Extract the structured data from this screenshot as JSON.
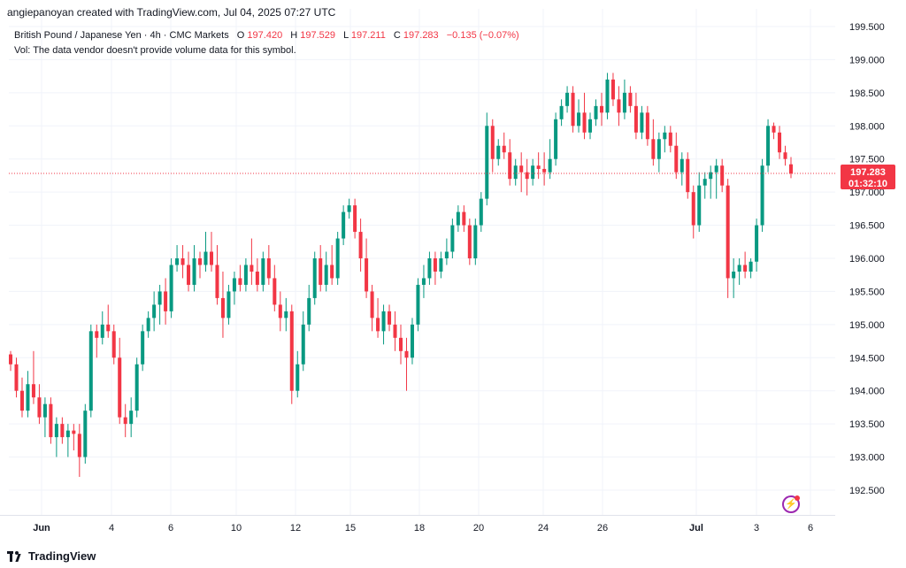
{
  "header": {
    "watermark": "angiepanoyan created with TradingView.com, Jul 04, 2025 07:27 UTC",
    "symbol_desc": "British Pound / Japanese Yen · 4h · CMC Markets",
    "ohlc": {
      "o_label": "O",
      "o_value": "197.420",
      "h_label": "H",
      "h_value": "197.529",
      "l_label": "L",
      "l_value": "197.211",
      "c_label": "C",
      "c_value": "197.283",
      "change": "−0.135 (−0.07%)"
    },
    "vol_note": "Vol: The data vendor doesn't provide volume data for this symbol."
  },
  "price_label": {
    "price": "197.283",
    "countdown": "01:32:10"
  },
  "footer": {
    "brand": "TradingView"
  },
  "colors": {
    "up": "#089981",
    "down": "#f23645",
    "grid": "#f0f3fa",
    "text": "#131722"
  },
  "icons": {
    "brand": "tradingview-logo-icon",
    "alert": "lightning-bolt-icon"
  },
  "chart_data": {
    "type": "candlestick",
    "symbol": "GBPJPY",
    "timeframe": "4h",
    "ylim": [
      192.2,
      199.6
    ],
    "y_ticks": [
      "199.500",
      "199.000",
      "198.500",
      "198.000",
      "197.500",
      "197.000",
      "196.500",
      "196.000",
      "195.500",
      "195.000",
      "194.500",
      "194.000",
      "193.500",
      "193.000",
      "192.500"
    ],
    "x_ticks": [
      {
        "label": "Jun",
        "bold": true
      },
      {
        "label": "4",
        "bold": false
      },
      {
        "label": "6",
        "bold": false
      },
      {
        "label": "10",
        "bold": false
      },
      {
        "label": "12",
        "bold": false
      },
      {
        "label": "15",
        "bold": false
      },
      {
        "label": "18",
        "bold": false
      },
      {
        "label": "20",
        "bold": false
      },
      {
        "label": "24",
        "bold": false
      },
      {
        "label": "26",
        "bold": false
      },
      {
        "label": "Jul",
        "bold": true
      },
      {
        "label": "3",
        "bold": false
      },
      {
        "label": "6",
        "bold": false
      }
    ],
    "last_price": 197.283,
    "candles": [
      [
        194.55,
        194.6,
        194.3,
        194.4
      ],
      [
        194.4,
        194.5,
        193.9,
        194.0
      ],
      [
        194.0,
        194.2,
        193.6,
        193.7
      ],
      [
        193.7,
        194.3,
        193.6,
        194.1
      ],
      [
        194.1,
        194.6,
        193.8,
        193.9
      ],
      [
        193.9,
        194.1,
        193.5,
        193.6
      ],
      [
        193.6,
        193.9,
        193.3,
        193.8
      ],
      [
        193.8,
        193.9,
        193.2,
        193.3
      ],
      [
        193.3,
        193.6,
        193.0,
        193.5
      ],
      [
        193.5,
        193.6,
        193.2,
        193.3
      ],
      [
        193.3,
        193.5,
        193.0,
        193.4
      ],
      [
        193.4,
        193.5,
        193.1,
        193.35
      ],
      [
        193.35,
        193.5,
        192.7,
        193.0
      ],
      [
        193.0,
        193.8,
        192.9,
        193.7
      ],
      [
        193.7,
        195.0,
        193.6,
        194.9
      ],
      [
        194.9,
        195.0,
        194.5,
        194.8
      ],
      [
        194.8,
        195.2,
        194.7,
        195.0
      ],
      [
        195.0,
        195.3,
        194.8,
        194.9
      ],
      [
        194.9,
        195.0,
        194.4,
        194.5
      ],
      [
        194.5,
        194.8,
        193.5,
        193.6
      ],
      [
        193.6,
        193.8,
        193.3,
        193.5
      ],
      [
        193.5,
        193.9,
        193.3,
        193.7
      ],
      [
        193.7,
        194.5,
        193.6,
        194.4
      ],
      [
        194.4,
        195.0,
        194.3,
        194.9
      ],
      [
        194.9,
        195.2,
        194.8,
        195.1
      ],
      [
        195.1,
        195.5,
        194.9,
        195.3
      ],
      [
        195.3,
        195.6,
        195.0,
        195.5
      ],
      [
        195.5,
        195.7,
        195.0,
        195.2
      ],
      [
        195.2,
        196.0,
        195.1,
        195.9
      ],
      [
        195.9,
        196.2,
        195.8,
        196.0
      ],
      [
        196.0,
        196.2,
        195.7,
        195.9
      ],
      [
        195.9,
        196.1,
        195.5,
        195.6
      ],
      [
        195.6,
        196.2,
        195.5,
        196.0
      ],
      [
        196.0,
        196.1,
        195.7,
        195.9
      ],
      [
        195.9,
        196.4,
        195.8,
        196.1
      ],
      [
        196.1,
        196.4,
        195.8,
        195.9
      ],
      [
        195.9,
        196.2,
        195.3,
        195.4
      ],
      [
        195.4,
        195.8,
        194.8,
        195.1
      ],
      [
        195.1,
        195.6,
        195.0,
        195.5
      ],
      [
        195.5,
        195.8,
        195.3,
        195.7
      ],
      [
        195.7,
        195.9,
        195.5,
        195.6
      ],
      [
        195.6,
        196.0,
        195.5,
        195.9
      ],
      [
        195.9,
        196.3,
        195.6,
        195.8
      ],
      [
        195.8,
        196.0,
        195.5,
        195.6
      ],
      [
        195.6,
        196.1,
        195.5,
        196.0
      ],
      [
        196.0,
        196.2,
        195.6,
        195.7
      ],
      [
        195.7,
        195.9,
        195.2,
        195.3
      ],
      [
        195.3,
        195.5,
        194.9,
        195.1
      ],
      [
        195.1,
        195.4,
        194.9,
        195.2
      ],
      [
        195.2,
        195.3,
        193.8,
        194.0
      ],
      [
        194.0,
        194.6,
        193.9,
        194.4
      ],
      [
        194.4,
        195.2,
        194.3,
        195.0
      ],
      [
        195.0,
        195.6,
        194.9,
        195.4
      ],
      [
        195.4,
        196.1,
        195.3,
        196.0
      ],
      [
        196.0,
        196.2,
        195.5,
        195.6
      ],
      [
        195.6,
        196.1,
        195.5,
        195.9
      ],
      [
        195.9,
        196.2,
        195.6,
        195.7
      ],
      [
        195.7,
        196.4,
        195.6,
        196.3
      ],
      [
        196.3,
        196.8,
        196.2,
        196.7
      ],
      [
        196.7,
        196.9,
        196.6,
        196.8
      ],
      [
        196.8,
        196.9,
        196.3,
        196.4
      ],
      [
        196.4,
        196.6,
        195.8,
        196.0
      ],
      [
        196.0,
        196.3,
        195.4,
        195.5
      ],
      [
        195.5,
        195.6,
        194.9,
        195.1
      ],
      [
        195.1,
        195.4,
        194.8,
        194.9
      ],
      [
        194.9,
        195.3,
        194.7,
        195.2
      ],
      [
        195.2,
        195.3,
        194.9,
        195.0
      ],
      [
        195.0,
        195.2,
        194.6,
        194.8
      ],
      [
        194.8,
        195.0,
        194.4,
        194.6
      ],
      [
        194.6,
        194.8,
        194.0,
        194.5
      ],
      [
        194.5,
        195.1,
        194.4,
        195.0
      ],
      [
        195.0,
        195.7,
        194.9,
        195.6
      ],
      [
        195.6,
        195.9,
        195.4,
        195.7
      ],
      [
        195.7,
        196.1,
        195.6,
        196.0
      ],
      [
        196.0,
        196.1,
        195.6,
        195.8
      ],
      [
        195.8,
        196.1,
        195.7,
        196.0
      ],
      [
        196.0,
        196.3,
        195.9,
        196.1
      ],
      [
        196.1,
        196.6,
        196.0,
        196.5
      ],
      [
        196.5,
        196.8,
        196.4,
        196.7
      ],
      [
        196.7,
        196.8,
        196.4,
        196.5
      ],
      [
        196.5,
        196.6,
        195.9,
        196.0
      ],
      [
        196.0,
        196.6,
        195.9,
        196.5
      ],
      [
        196.5,
        197.0,
        196.4,
        196.9
      ],
      [
        196.9,
        198.2,
        196.8,
        198.0
      ],
      [
        198.0,
        198.1,
        197.3,
        197.5
      ],
      [
        197.5,
        197.8,
        197.4,
        197.7
      ],
      [
        197.7,
        197.9,
        197.5,
        197.6
      ],
      [
        197.6,
        197.8,
        197.1,
        197.2
      ],
      [
        197.2,
        197.5,
        197.1,
        197.4
      ],
      [
        197.4,
        197.6,
        197.0,
        197.3
      ],
      [
        197.3,
        197.5,
        196.95,
        197.2
      ],
      [
        197.2,
        197.5,
        197.1,
        197.4
      ],
      [
        197.4,
        197.6,
        197.2,
        197.35
      ],
      [
        197.35,
        197.6,
        197.1,
        197.3
      ],
      [
        197.3,
        197.8,
        197.2,
        197.5
      ],
      [
        197.5,
        198.2,
        197.4,
        198.1
      ],
      [
        198.1,
        198.4,
        198.0,
        198.3
      ],
      [
        198.3,
        198.6,
        198.2,
        198.5
      ],
      [
        198.5,
        198.6,
        197.9,
        198.0
      ],
      [
        198.0,
        198.4,
        197.9,
        198.2
      ],
      [
        198.2,
        198.5,
        197.8,
        197.9
      ],
      [
        197.9,
        198.2,
        197.8,
        198.1
      ],
      [
        198.1,
        198.4,
        198.0,
        198.3
      ],
      [
        198.3,
        198.5,
        198.0,
        198.2
      ],
      [
        198.2,
        198.8,
        198.1,
        198.7
      ],
      [
        198.7,
        198.8,
        198.3,
        198.4
      ],
      [
        198.4,
        198.6,
        198.0,
        198.2
      ],
      [
        198.2,
        198.7,
        198.1,
        198.5
      ],
      [
        198.5,
        198.6,
        198.2,
        198.3
      ],
      [
        198.3,
        198.5,
        197.8,
        197.9
      ],
      [
        197.9,
        198.3,
        197.8,
        198.2
      ],
      [
        198.2,
        198.3,
        197.7,
        197.8
      ],
      [
        197.8,
        198.1,
        197.4,
        197.5
      ],
      [
        197.5,
        197.9,
        197.3,
        197.8
      ],
      [
        197.8,
        198.0,
        197.6,
        197.9
      ],
      [
        197.9,
        198.0,
        197.6,
        197.7
      ],
      [
        197.7,
        197.9,
        197.2,
        197.3
      ],
      [
        197.3,
        197.6,
        197.1,
        197.5
      ],
      [
        197.5,
        197.6,
        196.9,
        197.0
      ],
      [
        197.0,
        197.1,
        196.3,
        196.5
      ],
      [
        196.5,
        197.3,
        196.4,
        197.1
      ],
      [
        197.1,
        197.3,
        196.9,
        197.2
      ],
      [
        197.2,
        197.4,
        196.9,
        197.3
      ],
      [
        197.3,
        197.5,
        196.9,
        197.4
      ],
      [
        197.4,
        197.5,
        197.0,
        197.1
      ],
      [
        197.1,
        197.2,
        195.4,
        195.7
      ],
      [
        195.7,
        196.0,
        195.4,
        195.8
      ],
      [
        195.8,
        196.0,
        195.6,
        195.9
      ],
      [
        195.9,
        196.1,
        195.7,
        195.8
      ],
      [
        195.8,
        196.0,
        195.7,
        195.95
      ],
      [
        195.95,
        196.6,
        195.8,
        196.5
      ],
      [
        196.5,
        197.5,
        196.4,
        197.4
      ],
      [
        197.4,
        198.1,
        197.3,
        198.0
      ],
      [
        198.0,
        198.05,
        197.8,
        197.9
      ],
      [
        197.9,
        198.0,
        197.5,
        197.6
      ],
      [
        197.6,
        197.7,
        197.4,
        197.5
      ],
      [
        197.42,
        197.53,
        197.21,
        197.28
      ]
    ]
  }
}
